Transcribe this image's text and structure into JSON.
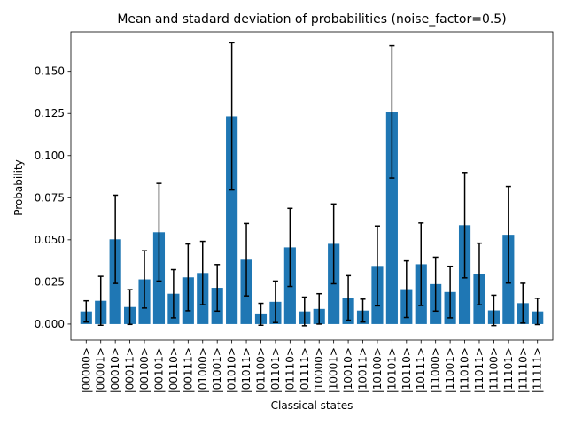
{
  "chart_data": {
    "type": "bar",
    "title": "Mean and stadard deviation of probabilities (noise_factor=0.5)",
    "xlabel": "Classical states",
    "ylabel": "Probability",
    "ylim": [
      -0.0095,
      0.1735
    ],
    "yticks": [
      0.0,
      0.025,
      0.05,
      0.075,
      0.1,
      0.125,
      0.15
    ],
    "ytick_labels": [
      "0.000",
      "0.025",
      "0.050",
      "0.075",
      "0.100",
      "0.125",
      "0.150"
    ],
    "grid": false,
    "bar_color": "#1f77b4",
    "errorbar_color": "#000000",
    "categories": [
      "|00000>",
      "|00001>",
      "|00010>",
      "|00011>",
      "|00100>",
      "|00101>",
      "|00110>",
      "|00111>",
      "|01000>",
      "|01001>",
      "|01010>",
      "|01011>",
      "|01100>",
      "|01101>",
      "|01110>",
      "|01111>",
      "|10000>",
      "|10001>",
      "|10010>",
      "|10011>",
      "|10100>",
      "|10101>",
      "|10110>",
      "|10111>",
      "|11000>",
      "|11001>",
      "|11010>",
      "|11011>",
      "|11100>",
      "|11101>",
      "|11110>",
      "|11111>"
    ],
    "values": [
      0.0075,
      0.0138,
      0.0503,
      0.0101,
      0.0265,
      0.0545,
      0.018,
      0.0277,
      0.0303,
      0.0215,
      0.1233,
      0.0382,
      0.0058,
      0.0132,
      0.0455,
      0.0075,
      0.009,
      0.0476,
      0.0155,
      0.008,
      0.0345,
      0.126,
      0.0207,
      0.0355,
      0.0237,
      0.019,
      0.0587,
      0.0297,
      0.0081,
      0.053,
      0.0124,
      0.0075
    ],
    "std": [
      0.0063,
      0.0145,
      0.0262,
      0.0103,
      0.017,
      0.029,
      0.0143,
      0.0198,
      0.0188,
      0.0138,
      0.0437,
      0.0215,
      0.0065,
      0.0123,
      0.0232,
      0.0085,
      0.009,
      0.0237,
      0.0132,
      0.0068,
      0.0237,
      0.0393,
      0.0168,
      0.0245,
      0.016,
      0.0153,
      0.0313,
      0.0183,
      0.009,
      0.0287,
      0.0118,
      0.0078
    ]
  }
}
